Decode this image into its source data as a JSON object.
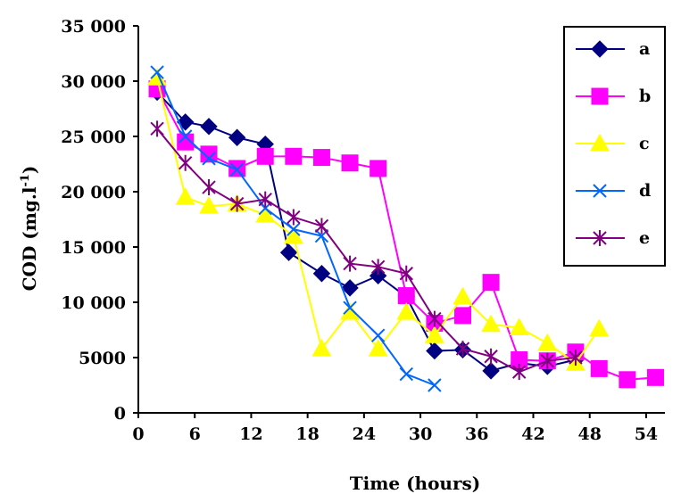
{
  "chart_data": {
    "type": "line",
    "title": "",
    "xlabel": "Time (hours)",
    "ylabel_main": "COD (mg.l",
    "ylabel_sup": "-1",
    "ylabel_close": ")",
    "xlim": [
      0,
      56
    ],
    "ylim": [
      0,
      35000
    ],
    "x_ticks": [
      0,
      6,
      12,
      18,
      24,
      30,
      36,
      42,
      48,
      54
    ],
    "x_tick_labels": [
      "0",
      "6",
      "12",
      "18",
      "24",
      "30",
      "36",
      "42",
      "48",
      "54"
    ],
    "y_ticks": [
      0,
      5000,
      10000,
      15000,
      20000,
      25000,
      30000,
      35000
    ],
    "y_tick_labels": [
      "0",
      "5000",
      "10 000",
      "15 000",
      "20 000",
      "25 000",
      "30 000",
      "35 000"
    ],
    "grid": false,
    "legend_position": "top-right",
    "series": [
      {
        "name": "a",
        "color": "#000080",
        "marker": "diamond",
        "x": [
          2,
          5,
          7.5,
          10.5,
          13.5,
          16,
          19.5,
          22.5,
          25.5,
          28.5,
          31.5,
          34.5,
          37.5,
          40.5,
          43.5,
          46.5
        ],
        "y": [
          29000,
          26300,
          25900,
          24900,
          24300,
          14500,
          12600,
          11300,
          12400,
          10500,
          5600,
          5700,
          3800,
          4500,
          4200,
          4800
        ]
      },
      {
        "name": "b",
        "color": "#ff00ff",
        "marker": "square",
        "x": [
          2,
          5,
          7.5,
          10.5,
          13.5,
          16.5,
          19.5,
          22.5,
          25.5,
          28.5,
          31.5,
          34.5,
          37.5,
          40.5,
          43.5,
          46.5,
          49,
          52,
          55
        ],
        "y": [
          29300,
          24500,
          23400,
          22100,
          23200,
          23200,
          23100,
          22600,
          22100,
          10600,
          8100,
          8800,
          11800,
          4800,
          4700,
          5500,
          4000,
          3000,
          3200
        ]
      },
      {
        "name": "c",
        "color": "#ffff00",
        "marker": "triangle",
        "x": [
          2,
          5,
          7.5,
          10.5,
          13.5,
          16.5,
          19.5,
          22.5,
          25.5,
          28.5,
          31.5,
          34.5,
          37.5,
          40.5,
          43.5,
          46.5,
          49
        ],
        "y": [
          30300,
          19500,
          18700,
          18900,
          17900,
          16000,
          5800,
          9100,
          5800,
          9100,
          7000,
          10500,
          8000,
          7700,
          6300,
          4500,
          7600
        ]
      },
      {
        "name": "d",
        "color": "#0066ff",
        "marker": "x",
        "x": [
          2,
          5,
          7.5,
          10.5,
          13.5,
          16.5,
          19.5,
          22.5,
          25.5,
          28.5,
          31.5
        ],
        "y": [
          30800,
          25000,
          23000,
          22000,
          18500,
          16600,
          16000,
          9500,
          7000,
          3500,
          2500
        ]
      },
      {
        "name": "e",
        "color": "#800080",
        "marker": "star",
        "x": [
          2,
          5,
          7.5,
          10.5,
          13.5,
          16.5,
          19.5,
          22.5,
          25.5,
          28.5,
          31.5,
          34.5,
          37.5,
          40.5,
          43.5,
          46.5
        ],
        "y": [
          25700,
          22600,
          20400,
          18900,
          19300,
          17700,
          16900,
          13500,
          13200,
          12600,
          8500,
          5800,
          5100,
          3700,
          4700,
          5000
        ]
      }
    ]
  }
}
